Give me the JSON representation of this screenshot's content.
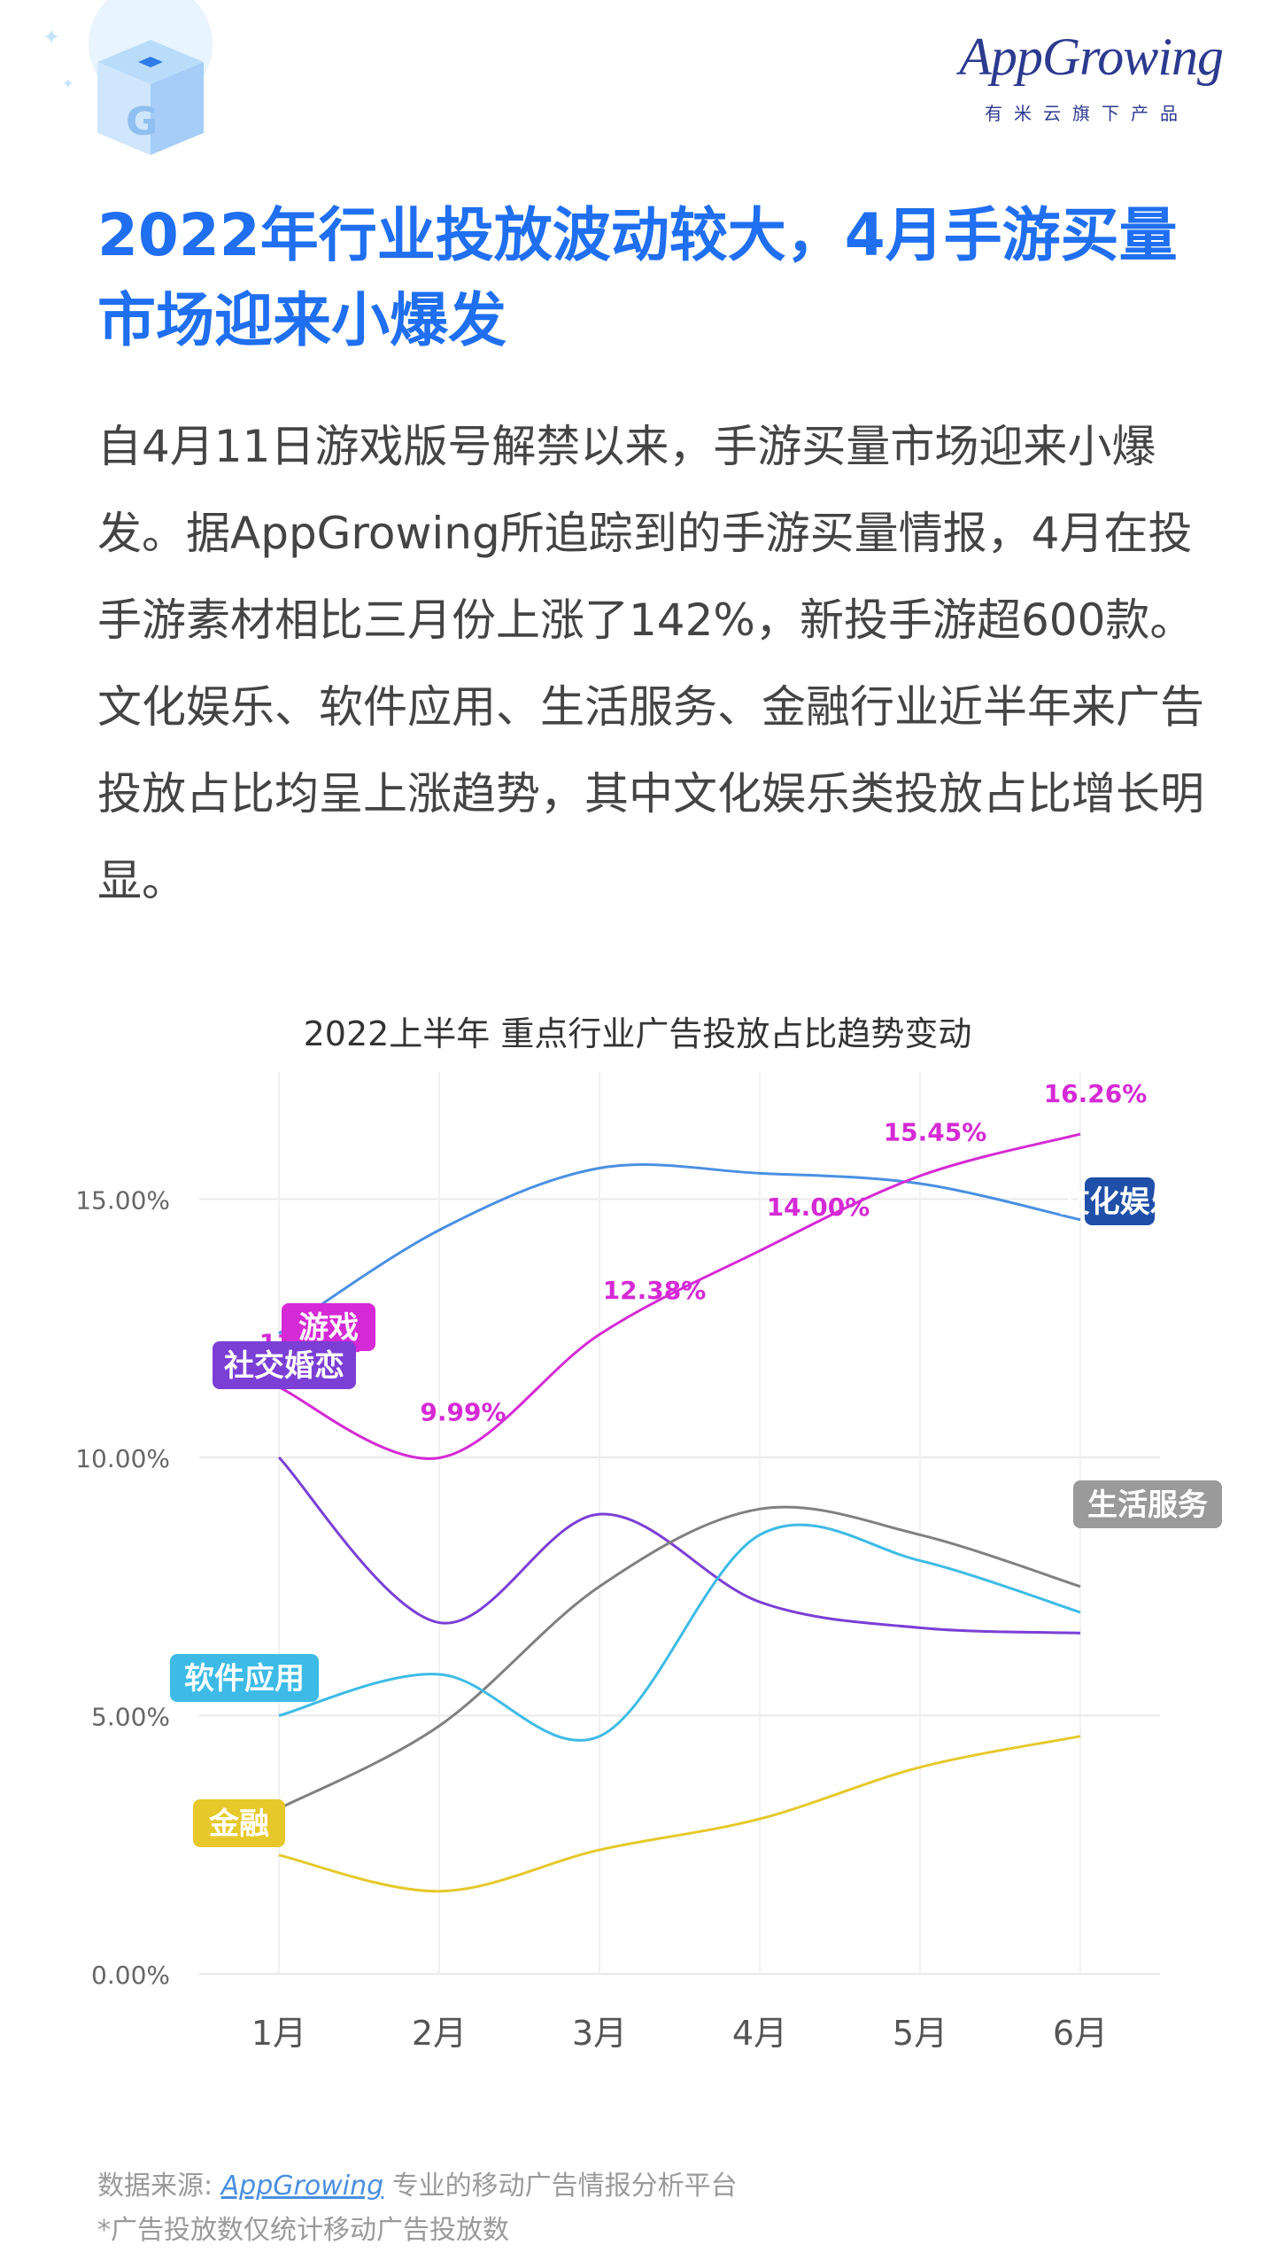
{
  "brand": {
    "logo_text": "AppGrowing",
    "tagline": "有米云旗下产品",
    "accent_color": "#1f6ff0",
    "logo_color": "#2c3a8f"
  },
  "headline": "2022年行业投放波动较大，4月手游买量市场迎来小爆发",
  "intro": "自4月11日游戏版号解禁以来，手游买量市场迎来小爆发。据AppGrowing所追踪到的手游买量情报，4月在投手游素材相比三月份上涨了142%，新投手游超600款。文化娱乐、软件应用、生活服务、金融行业近半年来广告投放占比均呈上涨趋势，其中文化娱乐类投放占比增长明显。",
  "footer": {
    "source_label": "数据来源:",
    "source_link": "AppGrowing",
    "source_desc": "专业的移动广告情报分析平台",
    "note": "*广告投放数仅统计移动广告投放数"
  },
  "chart_data": {
    "type": "line",
    "title": "2022上半年 重点行业广告投放占比趋势变动",
    "xlabel": "",
    "ylabel": "",
    "categories": [
      "1月",
      "2月",
      "3月",
      "4月",
      "5月",
      "6月"
    ],
    "ylim": [
      0,
      15
    ],
    "yticks": [
      "0.00%",
      "5.00%",
      "10.00%",
      "15.00%"
    ],
    "ytick_values": [
      0,
      5,
      10,
      15
    ],
    "grid": true,
    "series": [
      {
        "name": "文化娱乐",
        "color": "#4a90e2",
        "label_bg": "#1f4fa8",
        "values": [
          12.4,
          14.4,
          15.6,
          15.5,
          15.3,
          14.6
        ],
        "data_labels": []
      },
      {
        "name": "游戏",
        "color": "#d52ad5",
        "label_bg": "#d52ad5",
        "values": [
          11.36,
          9.99,
          12.38,
          14.0,
          15.45,
          16.26
        ],
        "data_labels": [
          "11.36%",
          "9.99%",
          "12.38%",
          "14.00%",
          "15.45%",
          "16.26%"
        ]
      },
      {
        "name": "社交婚恋",
        "color": "#7b3fd6",
        "label_bg": "#7b3fd6",
        "values": [
          10.0,
          6.8,
          8.9,
          7.2,
          6.7,
          6.6
        ],
        "data_labels": []
      },
      {
        "name": "生活服务",
        "color": "#808080",
        "label_bg": "#9a9a9a",
        "values": [
          3.2,
          4.8,
          7.5,
          9.0,
          8.5,
          7.5
        ],
        "data_labels": []
      },
      {
        "name": "软件应用",
        "color": "#3dbbe6",
        "label_bg": "#3dbbe6",
        "values": [
          5.0,
          5.8,
          4.6,
          8.5,
          8.0,
          7.0
        ],
        "data_labels": []
      },
      {
        "name": "金融",
        "color": "#e6c82a",
        "label_bg": "#e6c82a",
        "values": [
          2.3,
          1.6,
          2.4,
          3.0,
          4.0,
          4.6
        ],
        "data_labels": []
      }
    ]
  }
}
